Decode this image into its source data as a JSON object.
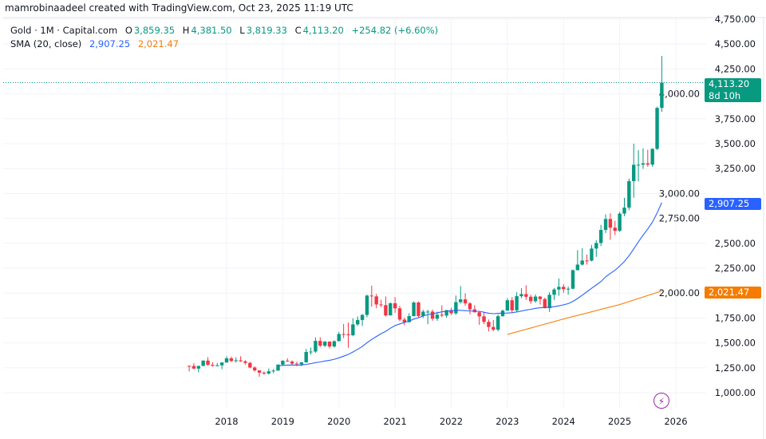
{
  "header": {
    "credit": "mamrobinaadeel created with TradingView.com, Oct 23, 2025 11:19 UTC"
  },
  "legend": {
    "symbol": "Gold · 1M · Capital.com",
    "open_label": "O",
    "open": "3,859.35",
    "high_label": "H",
    "high": "4,381.50",
    "low_label": "L",
    "low": "3,819.33",
    "close_label": "C",
    "close": "4,113.20",
    "change": "+254.82 (+6.60%)",
    "sma_label": "SMA (20, close)",
    "sma_value_1": "2,907.25",
    "sma_value_2": "2,021.47"
  },
  "price_labels": {
    "last": "4,113.20",
    "countdown": "8d 10h",
    "sma1": "2,907.25",
    "sma2": "2,021.47"
  },
  "icons": {
    "events": "lightning-icon"
  },
  "colors": {
    "up": "#089981",
    "down": "#f23645",
    "sma1": "#2962ff",
    "sma2": "#f57c00",
    "grid": "#f0f3fa"
  },
  "chart_data": {
    "type": "candlestick",
    "title": "",
    "interval": "1M",
    "start_month": "2017-05",
    "ohlc": [
      [
        1270,
        1271,
        1214,
        1268
      ],
      [
        1268,
        1296,
        1236,
        1242
      ],
      [
        1242,
        1270,
        1205,
        1269
      ],
      [
        1269,
        1326,
        1266,
        1322
      ],
      [
        1322,
        1357,
        1271,
        1280
      ],
      [
        1280,
        1306,
        1261,
        1271
      ],
      [
        1271,
        1299,
        1264,
        1275
      ],
      [
        1275,
        1306,
        1236,
        1303
      ],
      [
        1303,
        1366,
        1302,
        1345
      ],
      [
        1345,
        1362,
        1307,
        1318
      ],
      [
        1318,
        1356,
        1303,
        1325
      ],
      [
        1325,
        1366,
        1310,
        1315
      ],
      [
        1315,
        1326,
        1282,
        1299
      ],
      [
        1299,
        1310,
        1245,
        1253
      ],
      [
        1253,
        1265,
        1211,
        1224
      ],
      [
        1224,
        1224,
        1160,
        1201
      ],
      [
        1201,
        1214,
        1180,
        1192
      ],
      [
        1192,
        1243,
        1182,
        1215
      ],
      [
        1215,
        1237,
        1196,
        1222
      ],
      [
        1222,
        1284,
        1221,
        1282
      ],
      [
        1282,
        1326,
        1276,
        1321
      ],
      [
        1321,
        1346,
        1311,
        1313
      ],
      [
        1313,
        1324,
        1281,
        1292
      ],
      [
        1292,
        1310,
        1266,
        1284
      ],
      [
        1284,
        1306,
        1267,
        1305
      ],
      [
        1305,
        1439,
        1302,
        1409
      ],
      [
        1409,
        1453,
        1382,
        1413
      ],
      [
        1413,
        1555,
        1400,
        1520
      ],
      [
        1520,
        1557,
        1459,
        1472
      ],
      [
        1472,
        1518,
        1458,
        1513
      ],
      [
        1513,
        1516,
        1445,
        1464
      ],
      [
        1464,
        1525,
        1454,
        1517
      ],
      [
        1517,
        1611,
        1517,
        1589
      ],
      [
        1589,
        1689,
        1548,
        1585
      ],
      [
        1585,
        1704,
        1451,
        1577
      ],
      [
        1577,
        1747,
        1567,
        1686
      ],
      [
        1686,
        1765,
        1670,
        1730
      ],
      [
        1730,
        1789,
        1671,
        1781
      ],
      [
        1781,
        1984,
        1757,
        1975
      ],
      [
        1975,
        2075,
        1863,
        1967
      ],
      [
        1967,
        1992,
        1849,
        1886
      ],
      [
        1886,
        1933,
        1860,
        1879
      ],
      [
        1879,
        1966,
        1764,
        1776
      ],
      [
        1776,
        1906,
        1775,
        1898
      ],
      [
        1898,
        1959,
        1802,
        1847
      ],
      [
        1847,
        1872,
        1717,
        1734
      ],
      [
        1734,
        1755,
        1677,
        1708
      ],
      [
        1708,
        1798,
        1706,
        1769
      ],
      [
        1769,
        1916,
        1766,
        1906
      ],
      [
        1906,
        1916,
        1750,
        1770
      ],
      [
        1770,
        1832,
        1750,
        1814
      ],
      [
        1814,
        1833,
        1688,
        1814
      ],
      [
        1814,
        1835,
        1722,
        1743
      ],
      [
        1743,
        1814,
        1721,
        1783
      ],
      [
        1783,
        1877,
        1758,
        1774
      ],
      [
        1774,
        1831,
        1753,
        1829
      ],
      [
        1829,
        1853,
        1781,
        1797
      ],
      [
        1797,
        1975,
        1781,
        1909
      ],
      [
        1909,
        2070,
        1895,
        1937
      ],
      [
        1937,
        1998,
        1872,
        1897
      ],
      [
        1897,
        1910,
        1787,
        1837
      ],
      [
        1837,
        1879,
        1805,
        1807
      ],
      [
        1807,
        1814,
        1681,
        1766
      ],
      [
        1766,
        1808,
        1688,
        1711
      ],
      [
        1711,
        1735,
        1615,
        1660
      ],
      [
        1660,
        1730,
        1617,
        1633
      ],
      [
        1633,
        1786,
        1616,
        1768
      ],
      [
        1768,
        1833,
        1765,
        1824
      ],
      [
        1824,
        1949,
        1823,
        1928
      ],
      [
        1928,
        1959,
        1804,
        1827
      ],
      [
        1827,
        2009,
        1809,
        1969
      ],
      [
        1969,
        2049,
        1949,
        1990
      ],
      [
        1990,
        2079,
        1932,
        1963
      ],
      [
        1963,
        1983,
        1893,
        1919
      ],
      [
        1919,
        1987,
        1903,
        1965
      ],
      [
        1965,
        1970,
        1885,
        1940
      ],
      [
        1940,
        1953,
        1846,
        1849
      ],
      [
        1849,
        2009,
        1810,
        1983
      ],
      [
        1983,
        2052,
        1931,
        2036
      ],
      [
        2036,
        2146,
        1973,
        2063
      ],
      [
        2063,
        2088,
        2002,
        2039
      ],
      [
        2039,
        2065,
        1984,
        2044
      ],
      [
        2044,
        2236,
        2039,
        2230
      ],
      [
        2230,
        2431,
        2228,
        2286
      ],
      [
        2286,
        2450,
        2277,
        2327
      ],
      [
        2327,
        2387,
        2286,
        2326
      ],
      [
        2326,
        2483,
        2318,
        2447
      ],
      [
        2447,
        2531,
        2364,
        2503
      ],
      [
        2503,
        2685,
        2472,
        2634
      ],
      [
        2634,
        2790,
        2603,
        2744
      ],
      [
        2744,
        2801,
        2536,
        2657
      ],
      [
        2657,
        2726,
        2583,
        2625
      ],
      [
        2625,
        2817,
        2614,
        2798
      ],
      [
        2798,
        2956,
        2772,
        2858
      ],
      [
        2858,
        3149,
        2832,
        3124
      ],
      [
        3124,
        3500,
        2957,
        3288
      ],
      [
        3288,
        3435,
        3121,
        3289
      ],
      [
        3289,
        3452,
        3247,
        3303
      ],
      [
        3303,
        3439,
        3268,
        3290
      ],
      [
        3290,
        3453,
        3268,
        3448
      ],
      [
        3448,
        3871,
        3436,
        3859
      ],
      [
        3859.35,
        4381.5,
        3819.33,
        4113.2
      ]
    ],
    "sma_period": 20,
    "sma2_points": [
      [
        "2023-01",
        1585
      ],
      [
        "2024-01",
        1740
      ],
      [
        "2025-01",
        1885
      ],
      [
        "2025-10",
        2021.47
      ]
    ],
    "ylim": [
      1000,
      4750
    ],
    "y_ticks": [
      "4,750.00",
      "4,500.00",
      "4,250.00",
      "4,000.00",
      "3,750.00",
      "3,500.00",
      "3,250.00",
      "3,000.00",
      "2,750.00",
      "2,500.00",
      "2,250.00",
      "2,000.00",
      "1,750.00",
      "1,500.00",
      "1,250.00",
      "1,000.00"
    ],
    "y_tick_values": [
      4750,
      4500,
      4250,
      4000,
      3750,
      3500,
      3250,
      3000,
      2750,
      2500,
      2250,
      2000,
      1750,
      1500,
      1250,
      1000
    ],
    "x_ticks": [
      "2018",
      "2019",
      "2020",
      "2021",
      "2022",
      "2023",
      "2024",
      "2025",
      "2026"
    ],
    "grid": true
  }
}
